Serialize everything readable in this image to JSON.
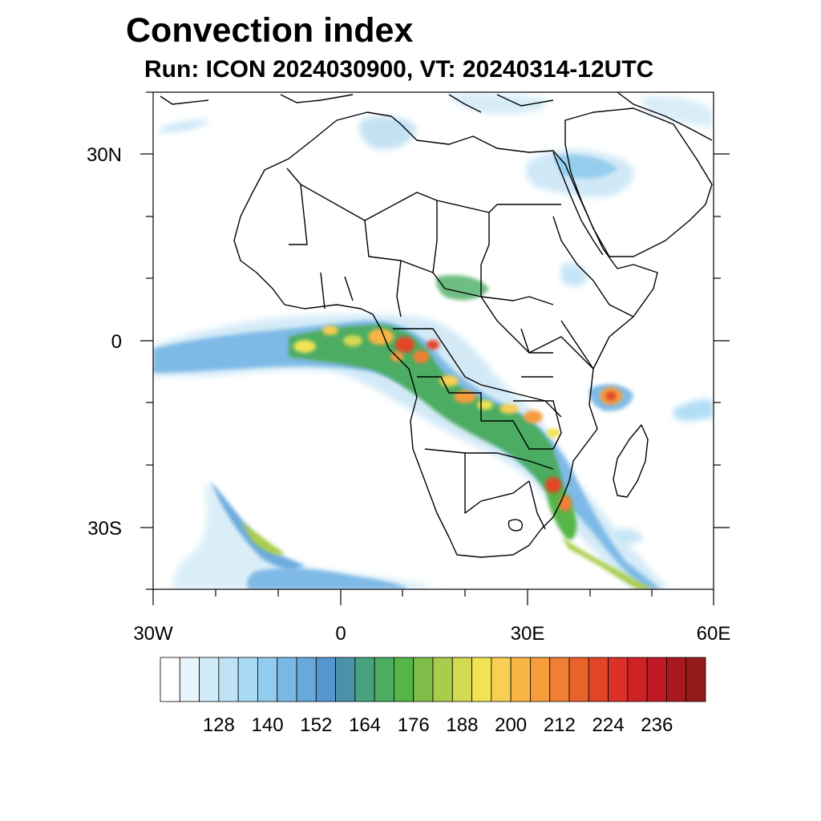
{
  "title": "Convection index",
  "subtitle": "Run: ICON 2024030900,  VT: 20240314-12UTC",
  "map": {
    "lat_labels": [
      "30N",
      "0",
      "30S"
    ],
    "lon_labels": [
      "30W",
      "0",
      "30E",
      "60E"
    ],
    "extent": {
      "lon": [
        -30,
        60
      ],
      "lat": [
        -40,
        40
      ]
    }
  },
  "colorbar": {
    "colors": [
      "#ffffff",
      "#e8f4fb",
      "#d2ebf8",
      "#bfe3f6",
      "#a9daf4",
      "#92cdef",
      "#7ab8e6",
      "#67a8dd",
      "#5596cf",
      "#4a92a8",
      "#47a27f",
      "#4bac62",
      "#55b548",
      "#7ebe48",
      "#aacc4b",
      "#d2da52",
      "#f0e354",
      "#f8cf52",
      "#f9b545",
      "#f69c3d",
      "#f07f34",
      "#e9622c",
      "#e34528",
      "#da3027",
      "#cf2227",
      "#bd1a25",
      "#a9181f",
      "#951a1c"
    ],
    "labels": [
      "128",
      "140",
      "152",
      "164",
      "176",
      "188",
      "200",
      "212",
      "224",
      "236"
    ]
  }
}
